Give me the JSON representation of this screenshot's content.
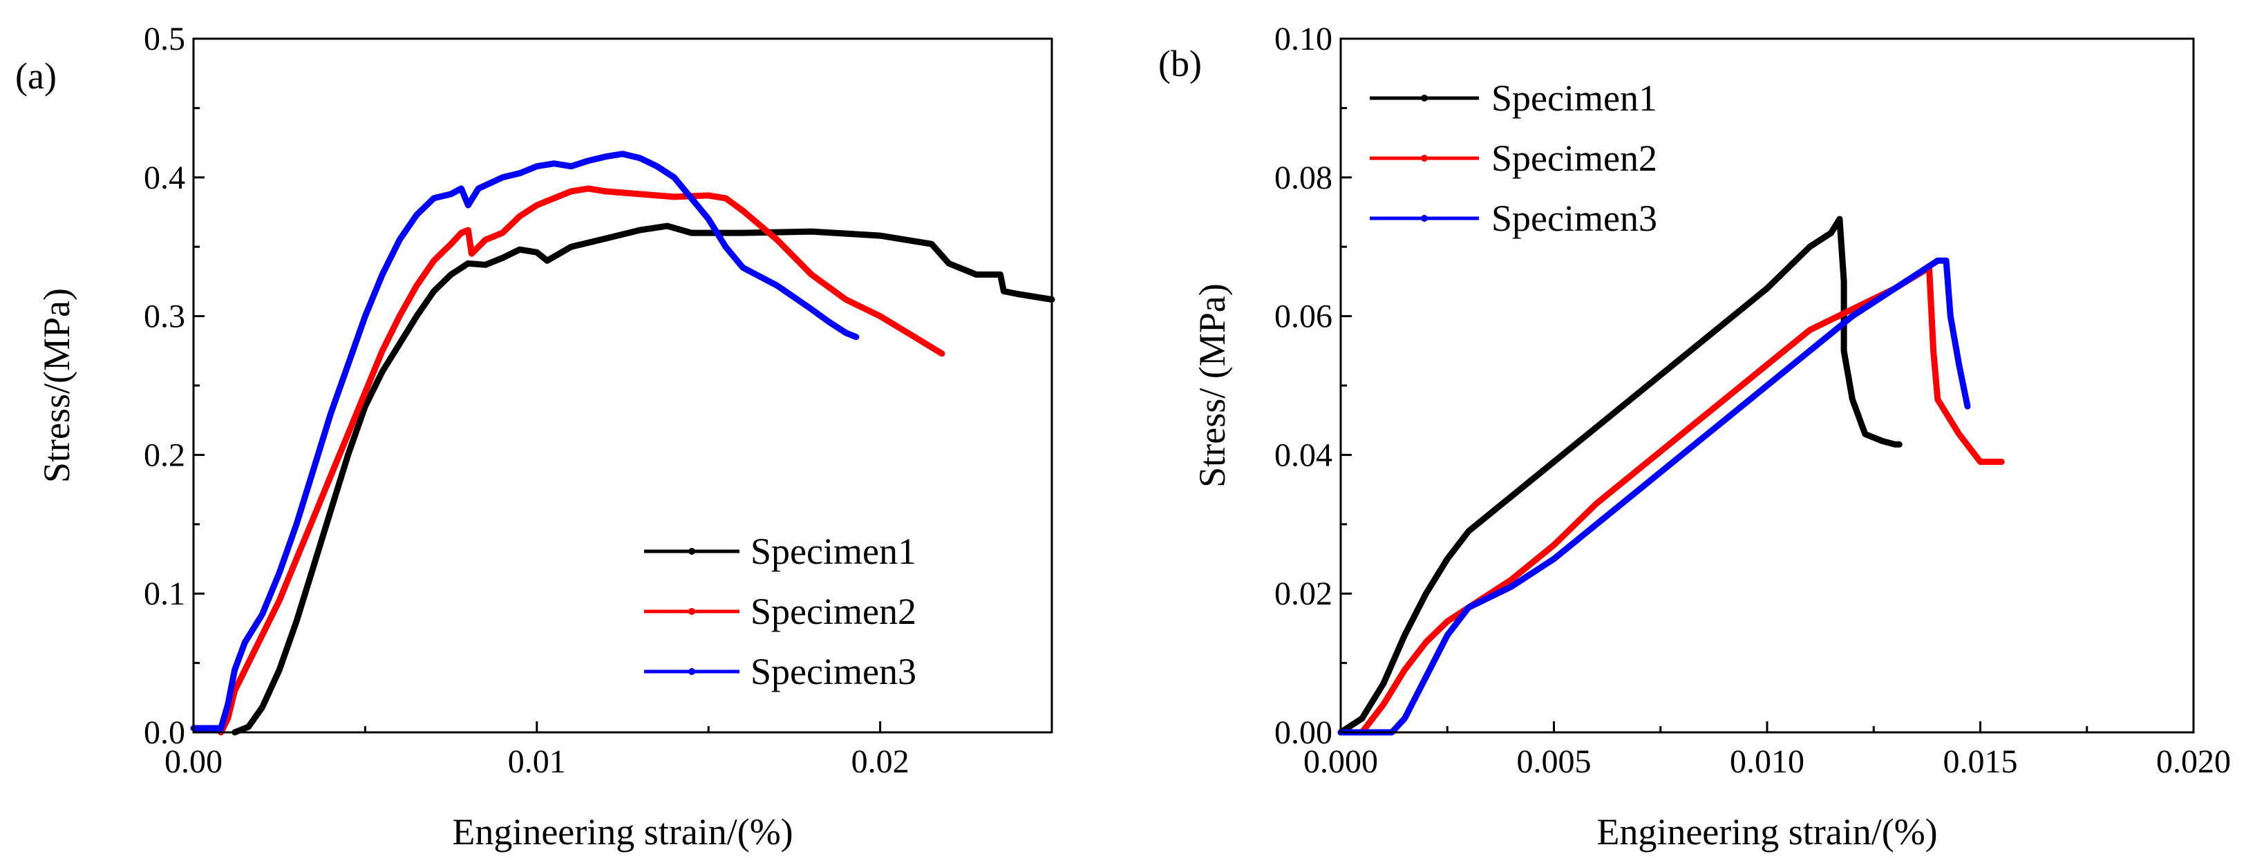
{
  "chart_data": [
    {
      "type": "line",
      "panel_label": "(a)",
      "xlabel": "Engineering strain/(%)",
      "ylabel": "Stress/(MPa)",
      "xlim": [
        0,
        0.025
      ],
      "ylim": [
        0,
        0.5
      ],
      "xticks": [
        0,
        0.01,
        0.02
      ],
      "xtick_labels": [
        "0.00",
        "0.01",
        "0.02"
      ],
      "yticks": [
        0,
        0.1,
        0.2,
        0.3,
        0.4,
        0.5
      ],
      "ytick_labels": [
        "0.0",
        "0.1",
        "0.2",
        "0.3",
        "0.4",
        "0.5"
      ],
      "legend": "bottom-right",
      "grid": false,
      "series": [
        {
          "name": "Specimen1",
          "color": "#000000",
          "points": [
            [
              0.0012,
              0.0
            ],
            [
              0.0016,
              0.004
            ],
            [
              0.002,
              0.018
            ],
            [
              0.0025,
              0.045
            ],
            [
              0.003,
              0.08
            ],
            [
              0.0035,
              0.12
            ],
            [
              0.004,
              0.16
            ],
            [
              0.0045,
              0.2
            ],
            [
              0.005,
              0.235
            ],
            [
              0.0055,
              0.26
            ],
            [
              0.006,
              0.28
            ],
            [
              0.0065,
              0.3
            ],
            [
              0.007,
              0.318
            ],
            [
              0.0075,
              0.33
            ],
            [
              0.008,
              0.338
            ],
            [
              0.0085,
              0.337
            ],
            [
              0.009,
              0.342
            ],
            [
              0.0095,
              0.348
            ],
            [
              0.01,
              0.346
            ],
            [
              0.0103,
              0.34
            ],
            [
              0.011,
              0.35
            ],
            [
              0.012,
              0.356
            ],
            [
              0.013,
              0.362
            ],
            [
              0.0138,
              0.365
            ],
            [
              0.0145,
              0.36
            ],
            [
              0.016,
              0.36
            ],
            [
              0.018,
              0.361
            ],
            [
              0.02,
              0.358
            ],
            [
              0.0215,
              0.352
            ],
            [
              0.022,
              0.338
            ],
            [
              0.0228,
              0.33
            ],
            [
              0.0235,
              0.33
            ],
            [
              0.0236,
              0.318
            ],
            [
              0.024,
              0.316
            ],
            [
              0.025,
              0.312
            ]
          ]
        },
        {
          "name": "Specimen2",
          "color": "#ff0000",
          "points": [
            [
              0.0008,
              0.0
            ],
            [
              0.001,
              0.01
            ],
            [
              0.0012,
              0.03
            ],
            [
              0.0015,
              0.045
            ],
            [
              0.002,
              0.07
            ],
            [
              0.0025,
              0.095
            ],
            [
              0.003,
              0.125
            ],
            [
              0.0035,
              0.155
            ],
            [
              0.004,
              0.185
            ],
            [
              0.0045,
              0.215
            ],
            [
              0.005,
              0.245
            ],
            [
              0.0055,
              0.275
            ],
            [
              0.006,
              0.3
            ],
            [
              0.0065,
              0.322
            ],
            [
              0.007,
              0.34
            ],
            [
              0.0075,
              0.352
            ],
            [
              0.0078,
              0.36
            ],
            [
              0.008,
              0.362
            ],
            [
              0.0081,
              0.345
            ],
            [
              0.0085,
              0.355
            ],
            [
              0.009,
              0.36
            ],
            [
              0.0095,
              0.372
            ],
            [
              0.01,
              0.38
            ],
            [
              0.0105,
              0.385
            ],
            [
              0.011,
              0.39
            ],
            [
              0.0115,
              0.392
            ],
            [
              0.012,
              0.39
            ],
            [
              0.013,
              0.388
            ],
            [
              0.014,
              0.386
            ],
            [
              0.015,
              0.387
            ],
            [
              0.0155,
              0.385
            ],
            [
              0.016,
              0.376
            ],
            [
              0.017,
              0.355
            ],
            [
              0.018,
              0.33
            ],
            [
              0.019,
              0.312
            ],
            [
              0.02,
              0.3
            ],
            [
              0.021,
              0.285
            ],
            [
              0.0218,
              0.273
            ]
          ]
        },
        {
          "name": "Specimen3",
          "color": "#0000ff",
          "points": [
            [
              0.0,
              0.003
            ],
            [
              0.0008,
              0.003
            ],
            [
              0.001,
              0.02
            ],
            [
              0.0012,
              0.045
            ],
            [
              0.0015,
              0.065
            ],
            [
              0.002,
              0.085
            ],
            [
              0.0025,
              0.115
            ],
            [
              0.003,
              0.15
            ],
            [
              0.0035,
              0.19
            ],
            [
              0.004,
              0.23
            ],
            [
              0.0045,
              0.265
            ],
            [
              0.005,
              0.3
            ],
            [
              0.0055,
              0.33
            ],
            [
              0.006,
              0.355
            ],
            [
              0.0065,
              0.373
            ],
            [
              0.007,
              0.385
            ],
            [
              0.0075,
              0.388
            ],
            [
              0.0078,
              0.392
            ],
            [
              0.008,
              0.38
            ],
            [
              0.0083,
              0.392
            ],
            [
              0.009,
              0.4
            ],
            [
              0.0095,
              0.403
            ],
            [
              0.01,
              0.408
            ],
            [
              0.0105,
              0.41
            ],
            [
              0.011,
              0.408
            ],
            [
              0.0115,
              0.412
            ],
            [
              0.012,
              0.415
            ],
            [
              0.0125,
              0.417
            ],
            [
              0.013,
              0.414
            ],
            [
              0.0135,
              0.408
            ],
            [
              0.014,
              0.4
            ],
            [
              0.0145,
              0.385
            ],
            [
              0.015,
              0.37
            ],
            [
              0.0155,
              0.35
            ],
            [
              0.016,
              0.335
            ],
            [
              0.017,
              0.322
            ],
            [
              0.018,
              0.305
            ],
            [
              0.0185,
              0.296
            ],
            [
              0.019,
              0.288
            ],
            [
              0.0193,
              0.285
            ]
          ]
        }
      ]
    },
    {
      "type": "line",
      "panel_label": "(b)",
      "xlabel": "Engineering strain/(%)",
      "ylabel": "Stress/ (MPa)",
      "xlim": [
        0,
        0.02
      ],
      "ylim": [
        0,
        0.1
      ],
      "xticks": [
        0,
        0.005,
        0.01,
        0.015,
        0.02
      ],
      "xtick_labels": [
        "0.000",
        "0.005",
        "0.010",
        "0.015",
        "0.020"
      ],
      "yticks": [
        0,
        0.02,
        0.04,
        0.06,
        0.08,
        0.1
      ],
      "ytick_labels": [
        "0.00",
        "0.02",
        "0.04",
        "0.06",
        "0.08",
        "0.10"
      ],
      "legend": "top-left",
      "grid": false,
      "series": [
        {
          "name": "Specimen1",
          "color": "#000000",
          "points": [
            [
              0.0,
              0.0
            ],
            [
              0.0005,
              0.002
            ],
            [
              0.001,
              0.007
            ],
            [
              0.0015,
              0.014
            ],
            [
              0.002,
              0.02
            ],
            [
              0.0025,
              0.025
            ],
            [
              0.003,
              0.029
            ],
            [
              0.004,
              0.034
            ],
            [
              0.005,
              0.039
            ],
            [
              0.006,
              0.044
            ],
            [
              0.007,
              0.049
            ],
            [
              0.008,
              0.054
            ],
            [
              0.009,
              0.059
            ],
            [
              0.01,
              0.064
            ],
            [
              0.0105,
              0.067
            ],
            [
              0.011,
              0.07
            ],
            [
              0.0115,
              0.072
            ],
            [
              0.0117,
              0.074
            ],
            [
              0.0118,
              0.065
            ],
            [
              0.0118,
              0.055
            ],
            [
              0.012,
              0.048
            ],
            [
              0.0123,
              0.043
            ],
            [
              0.0127,
              0.042
            ],
            [
              0.013,
              0.0415
            ],
            [
              0.0131,
              0.0415
            ]
          ]
        },
        {
          "name": "Specimen2",
          "color": "#ff0000",
          "points": [
            [
              0.0,
              0.0
            ],
            [
              0.0005,
              0.0
            ],
            [
              0.001,
              0.004
            ],
            [
              0.0015,
              0.009
            ],
            [
              0.002,
              0.013
            ],
            [
              0.0025,
              0.016
            ],
            [
              0.003,
              0.018
            ],
            [
              0.004,
              0.022
            ],
            [
              0.005,
              0.027
            ],
            [
              0.006,
              0.033
            ],
            [
              0.007,
              0.038
            ],
            [
              0.008,
              0.043
            ],
            [
              0.009,
              0.048
            ],
            [
              0.01,
              0.053
            ],
            [
              0.011,
              0.058
            ],
            [
              0.012,
              0.061
            ],
            [
              0.013,
              0.064
            ],
            [
              0.0138,
              0.067
            ],
            [
              0.0139,
              0.055
            ],
            [
              0.014,
              0.048
            ],
            [
              0.0145,
              0.043
            ],
            [
              0.015,
              0.039
            ],
            [
              0.0155,
              0.039
            ]
          ]
        },
        {
          "name": "Specimen3",
          "color": "#0000ff",
          "points": [
            [
              0.0,
              0.0
            ],
            [
              0.0012,
              0.0
            ],
            [
              0.0015,
              0.002
            ],
            [
              0.002,
              0.008
            ],
            [
              0.0025,
              0.014
            ],
            [
              0.003,
              0.018
            ],
            [
              0.004,
              0.021
            ],
            [
              0.005,
              0.025
            ],
            [
              0.006,
              0.03
            ],
            [
              0.007,
              0.035
            ],
            [
              0.008,
              0.04
            ],
            [
              0.009,
              0.045
            ],
            [
              0.01,
              0.05
            ],
            [
              0.011,
              0.055
            ],
            [
              0.012,
              0.06
            ],
            [
              0.013,
              0.064
            ],
            [
              0.014,
              0.068
            ],
            [
              0.0142,
              0.068
            ],
            [
              0.0143,
              0.06
            ],
            [
              0.0145,
              0.053
            ],
            [
              0.0147,
              0.047
            ]
          ]
        }
      ]
    }
  ]
}
